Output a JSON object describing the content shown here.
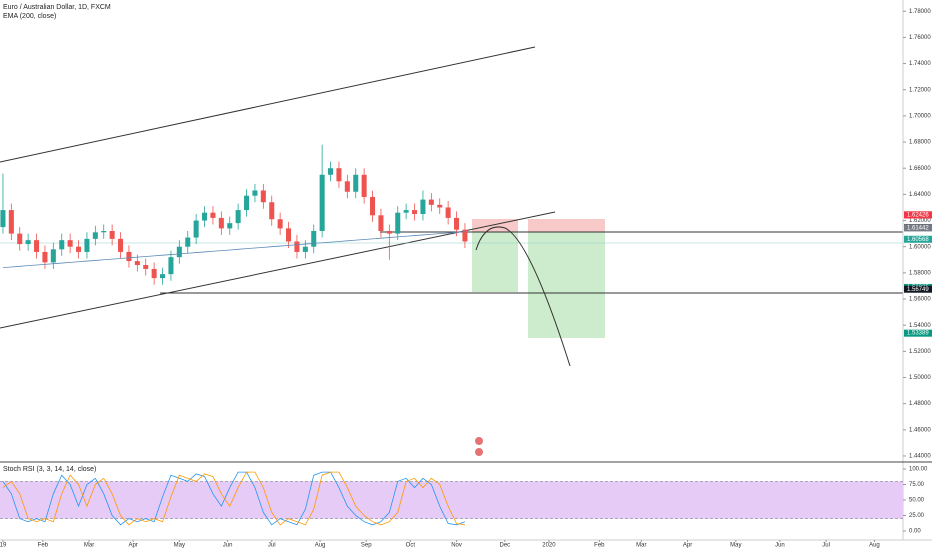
{
  "chart_data": {
    "type": "candlestick",
    "title": "Euro / Australian Dollar, 1D, FXCM",
    "indicator": "EMA (200, close)",
    "x": [
      0,
      4,
      8,
      12,
      16,
      20,
      24,
      28,
      32,
      36,
      40,
      44,
      48,
      52,
      56,
      60,
      64,
      68,
      72,
      76,
      80,
      84,
      88,
      92,
      96,
      100,
      104,
      108,
      112,
      116,
      120,
      124,
      128,
      132,
      136,
      140,
      144,
      148,
      152,
      156,
      160,
      164,
      168,
      172,
      176,
      180,
      184,
      188,
      192,
      196,
      200,
      204,
      208,
      212,
      216,
      220
    ],
    "open": [
      1.615,
      1.628,
      1.61,
      1.602,
      1.605,
      1.596,
      1.588,
      1.598,
      1.605,
      1.6,
      1.596,
      1.606,
      1.611,
      1.612,
      1.606,
      1.596,
      1.589,
      1.586,
      1.583,
      1.576,
      1.579,
      1.592,
      1.6,
      1.607,
      1.62,
      1.626,
      1.622,
      1.614,
      1.618,
      1.628,
      1.639,
      1.643,
      1.634,
      1.621,
      1.614,
      1.604,
      1.596,
      1.6,
      1.612,
      1.655,
      1.66,
      1.65,
      1.642,
      1.655,
      1.638,
      1.624,
      1.612,
      1.61,
      1.626,
      1.628,
      1.625,
      1.636,
      1.632,
      1.63,
      1.622,
      1.613
    ],
    "high": [
      1.656,
      1.633,
      1.615,
      1.61,
      1.61,
      1.601,
      1.603,
      1.61,
      1.61,
      1.605,
      1.611,
      1.616,
      1.617,
      1.617,
      1.611,
      1.601,
      1.594,
      1.591,
      1.588,
      1.584,
      1.597,
      1.605,
      1.612,
      1.625,
      1.631,
      1.631,
      1.627,
      1.623,
      1.633,
      1.644,
      1.648,
      1.648,
      1.639,
      1.626,
      1.619,
      1.609,
      1.605,
      1.617,
      1.678,
      1.665,
      1.665,
      1.655,
      1.66,
      1.66,
      1.643,
      1.629,
      1.617,
      1.631,
      1.633,
      1.633,
      1.643,
      1.641,
      1.637,
      1.635,
      1.627,
      1.618
    ],
    "low": [
      1.61,
      1.605,
      1.597,
      1.597,
      1.591,
      1.583,
      1.583,
      1.593,
      1.595,
      1.591,
      1.591,
      1.601,
      1.606,
      1.601,
      1.591,
      1.584,
      1.581,
      1.578,
      1.571,
      1.571,
      1.574,
      1.587,
      1.595,
      1.602,
      1.615,
      1.617,
      1.609,
      1.609,
      1.613,
      1.623,
      1.634,
      1.629,
      1.616,
      1.609,
      1.599,
      1.591,
      1.591,
      1.595,
      1.607,
      1.65,
      1.645,
      1.637,
      1.637,
      1.633,
      1.619,
      1.607,
      1.59,
      1.605,
      1.621,
      1.62,
      1.62,
      1.627,
      1.625,
      1.617,
      1.608,
      1.599
    ],
    "close": [
      1.628,
      1.61,
      1.602,
      1.605,
      1.596,
      1.588,
      1.598,
      1.605,
      1.6,
      1.596,
      1.606,
      1.611,
      1.612,
      1.606,
      1.596,
      1.589,
      1.586,
      1.583,
      1.576,
      1.579,
      1.592,
      1.6,
      1.607,
      1.62,
      1.626,
      1.622,
      1.614,
      1.618,
      1.628,
      1.639,
      1.643,
      1.634,
      1.621,
      1.614,
      1.604,
      1.596,
      1.6,
      1.612,
      1.655,
      1.66,
      1.65,
      1.642,
      1.655,
      1.638,
      1.624,
      1.612,
      1.61,
      1.626,
      1.628,
      1.625,
      1.636,
      1.632,
      1.63,
      1.622,
      1.613,
      1.604
    ],
    "up_color": "#26a69a",
    "down_color": "#ef5350",
    "ema": {
      "color": "#5b8ab8",
      "values": [
        1.584,
        1.5845,
        1.585,
        1.5855,
        1.586,
        1.5865,
        1.587,
        1.5875,
        1.588,
        1.5885,
        1.589,
        1.5895,
        1.59,
        1.5905,
        1.591,
        1.5915,
        1.592,
        1.5925,
        1.593,
        1.5935,
        1.594,
        1.5945,
        1.595,
        1.5955,
        1.596,
        1.5965,
        1.597,
        1.5975,
        1.598,
        1.5985,
        1.599,
        1.5995,
        1.6,
        1.6005,
        1.601,
        1.6015,
        1.602,
        1.6025,
        1.603,
        1.6035,
        1.604,
        1.6045,
        1.605,
        1.6055,
        1.606,
        1.6065,
        1.607,
        1.6075,
        1.608,
        1.6085,
        1.609,
        1.6095,
        1.61,
        1.6105,
        1.611,
        1.6115
      ]
    },
    "xlim": [
      -1.4,
      428.6
    ],
    "xticks": [
      {
        "value": 0,
        "label": "19"
      },
      {
        "value": 19,
        "label": "Feb"
      },
      {
        "value": 41,
        "label": "Mar"
      },
      {
        "value": 62,
        "label": "Apr"
      },
      {
        "value": 84,
        "label": "May"
      },
      {
        "value": 107,
        "label": "Jun"
      },
      {
        "value": 128,
        "label": "Jul"
      },
      {
        "value": 151,
        "label": "Aug"
      },
      {
        "value": 173,
        "label": "Sep"
      },
      {
        "value": 194,
        "label": "Oct"
      },
      {
        "value": 216,
        "label": "Nov"
      },
      {
        "value": 239,
        "label": "Dec"
      },
      {
        "value": 260,
        "label": "2020"
      },
      {
        "value": 284,
        "label": "Feb"
      },
      {
        "value": 304,
        "label": "Mar"
      },
      {
        "value": 326,
        "label": "Apr"
      },
      {
        "value": 349,
        "label": "May"
      },
      {
        "value": 370,
        "label": "Jun"
      },
      {
        "value": 392,
        "label": "Jul"
      },
      {
        "value": 415,
        "label": "Aug"
      }
    ],
    "ylim": [
      1.4354,
      1.7886
    ],
    "yticks": [
      {
        "value": 1.44,
        "label": "1.44000"
      },
      {
        "value": 1.46,
        "label": "1.46000"
      },
      {
        "value": 1.48,
        "label": "1.48000"
      },
      {
        "value": 1.5,
        "label": "1.50000"
      },
      {
        "value": 1.52,
        "label": "1.52000"
      },
      {
        "value": 1.54,
        "label": "1.54000"
      },
      {
        "value": 1.56,
        "label": "1.56000"
      },
      {
        "value": 1.58,
        "label": "1.58000"
      },
      {
        "value": 1.6,
        "label": "1.60000"
      },
      {
        "value": 1.62,
        "label": "1.62000"
      },
      {
        "value": 1.64,
        "label": "1.64000"
      },
      {
        "value": 1.66,
        "label": "1.66000"
      },
      {
        "value": 1.68,
        "label": "1.68000"
      },
      {
        "value": 1.7,
        "label": "1.70000"
      },
      {
        "value": 1.72,
        "label": "1.72000"
      },
      {
        "value": 1.74,
        "label": "1.74000"
      },
      {
        "value": 1.76,
        "label": "1.76000"
      },
      {
        "value": 1.78,
        "label": "1.78000"
      }
    ],
    "price_labels": [
      {
        "value": 1.62437,
        "color": "#f23645"
      },
      {
        "value": 1.62426,
        "color": "#f23645"
      },
      {
        "value": 1.61466,
        "color": "#131722"
      },
      {
        "value": 1.61453,
        "color": "#787b86"
      },
      {
        "value": 1.61442,
        "color": "#787b86"
      },
      {
        "value": 1.60568,
        "color": "#26a69a"
      },
      {
        "value": 1.56885,
        "color": "#089981"
      },
      {
        "value": 1.56749,
        "color": "#131722"
      },
      {
        "value": 1.53389,
        "color": "#089981"
      }
    ],
    "stoch": {
      "title": "Stoch RSI (3, 3, 14, 14, close)",
      "ylim": [
        0,
        100
      ],
      "yticks": [
        {
          "value": 0,
          "label": "0.00"
        },
        {
          "value": 25,
          "label": "25.00"
        },
        {
          "value": 50,
          "label": "50.00"
        },
        {
          "value": 75,
          "label": "75.00"
        },
        {
          "value": 100,
          "label": "100.00"
        }
      ],
      "bands": [
        20,
        80
      ],
      "series": [
        {
          "color": "#2196f3",
          "values": [
            80,
            60,
            20,
            15,
            20,
            15,
            60,
            90,
            75,
            40,
            75,
            85,
            60,
            25,
            10,
            20,
            15,
            20,
            15,
            55,
            90,
            85,
            80,
            92,
            88,
            60,
            40,
            70,
            95,
            95,
            70,
            30,
            10,
            20,
            15,
            10,
            35,
            90,
            95,
            95,
            70,
            40,
            25,
            15,
            10,
            15,
            30,
            80,
            85,
            70,
            85,
            75,
            40,
            12,
            10,
            15
          ]
        },
        {
          "color": "#ff9800",
          "values": [
            70,
            80,
            60,
            20,
            15,
            20,
            15,
            60,
            90,
            75,
            40,
            75,
            85,
            60,
            25,
            10,
            20,
            15,
            20,
            15,
            55,
            90,
            85,
            80,
            92,
            88,
            60,
            40,
            70,
            95,
            95,
            70,
            30,
            10,
            20,
            15,
            10,
            35,
            90,
            95,
            95,
            70,
            40,
            25,
            15,
            10,
            15,
            30,
            80,
            85,
            70,
            85,
            75,
            40,
            12,
            10
          ]
        }
      ]
    }
  }
}
